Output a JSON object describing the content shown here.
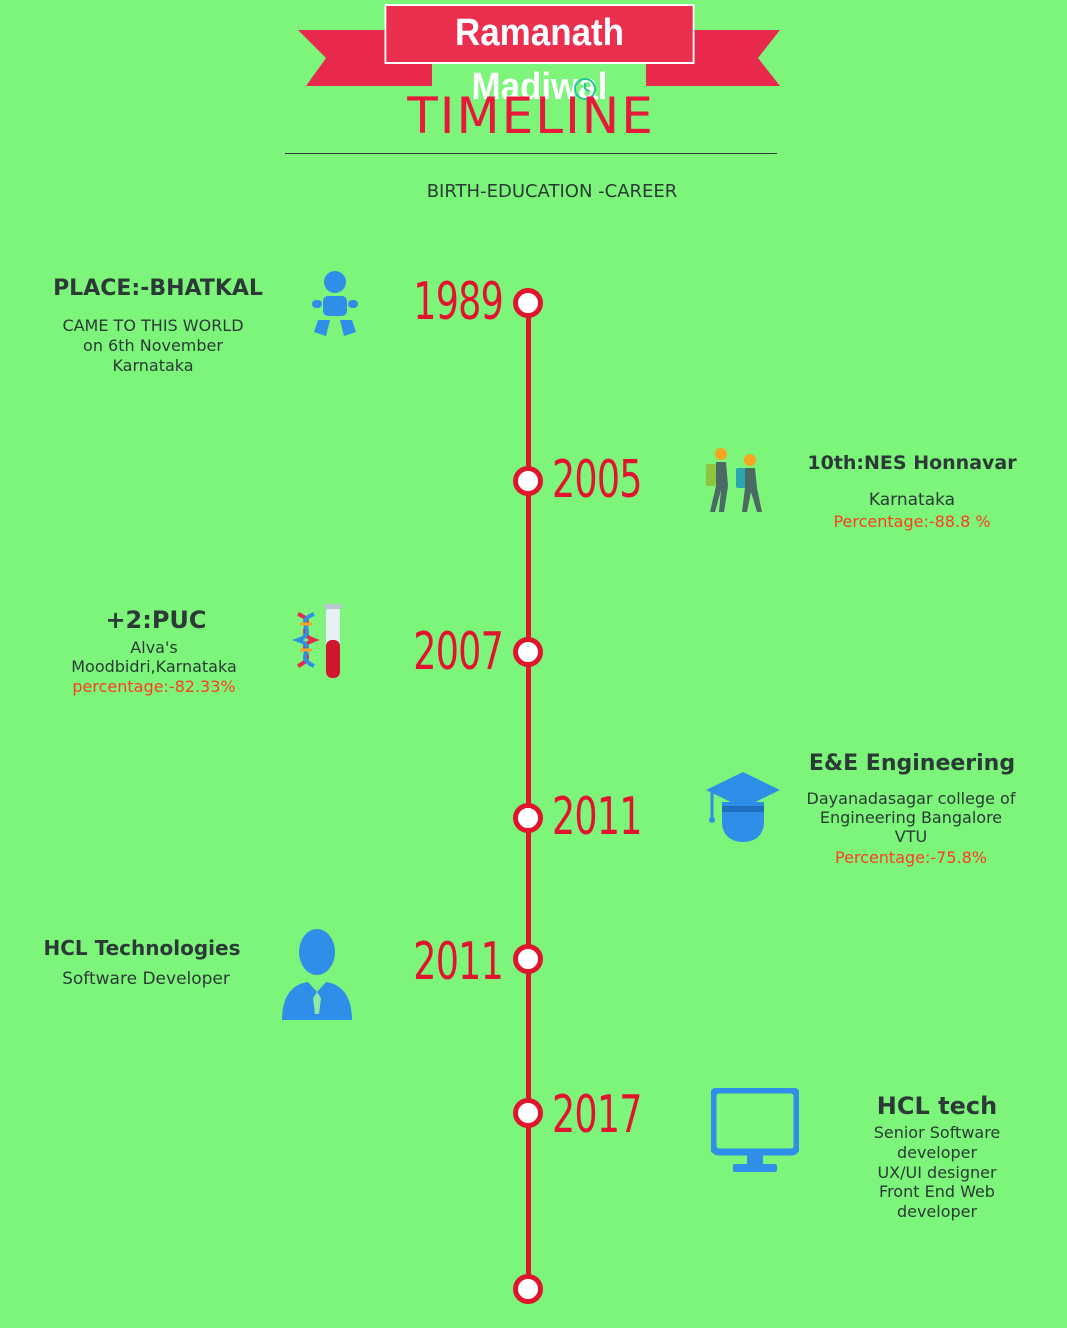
{
  "header": {
    "name": "Ramanath Madiwal",
    "title": "TIMELINE",
    "subtitle": "BIRTH-EDUCATION -CAREER"
  },
  "colors": {
    "background": "#7cf57a",
    "accent_red": "#e0152c",
    "banner": "#ec2e4f",
    "icon_blue": "#2f8fe8",
    "percentage": "#ff3d1f"
  },
  "events": [
    {
      "year": "1989",
      "side": "left",
      "icon": "baby-icon",
      "heading": "PLACE:-BHATKAL",
      "lines": [
        "CAME TO THIS WORLD",
        "on 6th November",
        "Karnataka"
      ]
    },
    {
      "year": "2005",
      "side": "right",
      "icon": "students-walking-icon",
      "heading": "10th:NES Honnavar",
      "lines": [
        "Karnataka"
      ],
      "percentage": "Percentage:-88.8 %"
    },
    {
      "year": "2007",
      "side": "left",
      "icon": "dna-test-tube-icon",
      "heading": "+2:PUC",
      "lines": [
        "Alva's",
        "Moodbidri,Karnataka"
      ],
      "percentage": "percentage:-82.33%"
    },
    {
      "year": "2011",
      "side": "right",
      "icon": "graduate-cap-icon",
      "heading": "E&E  Engineering",
      "lines": [
        "Dayanadasagar college of",
        "Engineering Bangalore",
        "VTU"
      ],
      "percentage": "Percentage:-75.8%"
    },
    {
      "year": "2011",
      "side": "left",
      "icon": "businessman-icon",
      "heading": "HCL Technologies",
      "lines": [
        "Software Developer"
      ]
    },
    {
      "year": "2017",
      "side": "right",
      "icon": "monitor-icon",
      "heading": "HCL tech",
      "lines": [
        "Senior Software",
        "developer",
        "UX/UI designer",
        "Front End Web",
        "developer"
      ]
    }
  ]
}
